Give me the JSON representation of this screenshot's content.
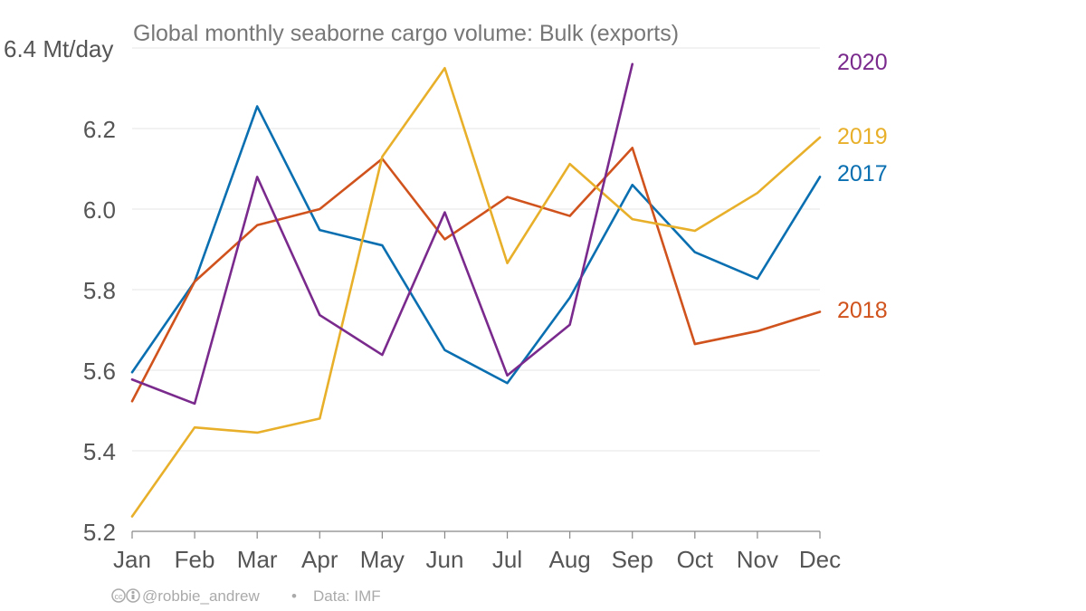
{
  "chart_data": {
    "type": "line",
    "title": "Global monthly seaborne cargo volume: Bulk (exports)",
    "ylabel": "Mt/day",
    "xlabel": "",
    "categories": [
      "Jan",
      "Feb",
      "Mar",
      "Apr",
      "May",
      "Jun",
      "Jul",
      "Aug",
      "Sep",
      "Oct",
      "Nov",
      "Dec"
    ],
    "ylim": [
      5.2,
      6.4
    ],
    "yticks": [
      5.2,
      5.4,
      5.6,
      5.8,
      6.0,
      6.2,
      6.4
    ],
    "yticklabels": [
      "5.2",
      "5.4",
      "5.6",
      "5.8",
      "6.0",
      "6.2",
      "6.4 Mt/day"
    ],
    "grid": true,
    "legend": "direct labels at right end of lines",
    "series": [
      {
        "name": "2017",
        "color": "#0a6fb0",
        "values": [
          5.595,
          5.82,
          6.255,
          5.948,
          5.91,
          5.65,
          5.568,
          5.78,
          6.06,
          5.893,
          5.827,
          6.08
        ]
      },
      {
        "name": "2018",
        "color": "#d0521c",
        "values": [
          5.523,
          5.82,
          5.96,
          6.0,
          6.125,
          5.925,
          6.03,
          5.983,
          6.152,
          5.665,
          5.697,
          5.745
        ]
      },
      {
        "name": "2019",
        "color": "#e8b02a",
        "values": [
          5.237,
          5.458,
          5.445,
          5.48,
          6.13,
          6.35,
          5.866,
          6.112,
          5.975,
          5.946,
          6.04,
          6.178
        ]
      },
      {
        "name": "2020",
        "color": "#7a2a8c",
        "values": [
          5.577,
          5.517,
          6.08,
          5.737,
          5.638,
          5.992,
          5.587,
          5.713,
          6.36,
          null,
          null,
          null
        ]
      }
    ]
  },
  "credit": {
    "author": "@robbie_andrew",
    "separator": "•",
    "source": "Data: IMF",
    "license_icon": "cc-by-icon"
  }
}
